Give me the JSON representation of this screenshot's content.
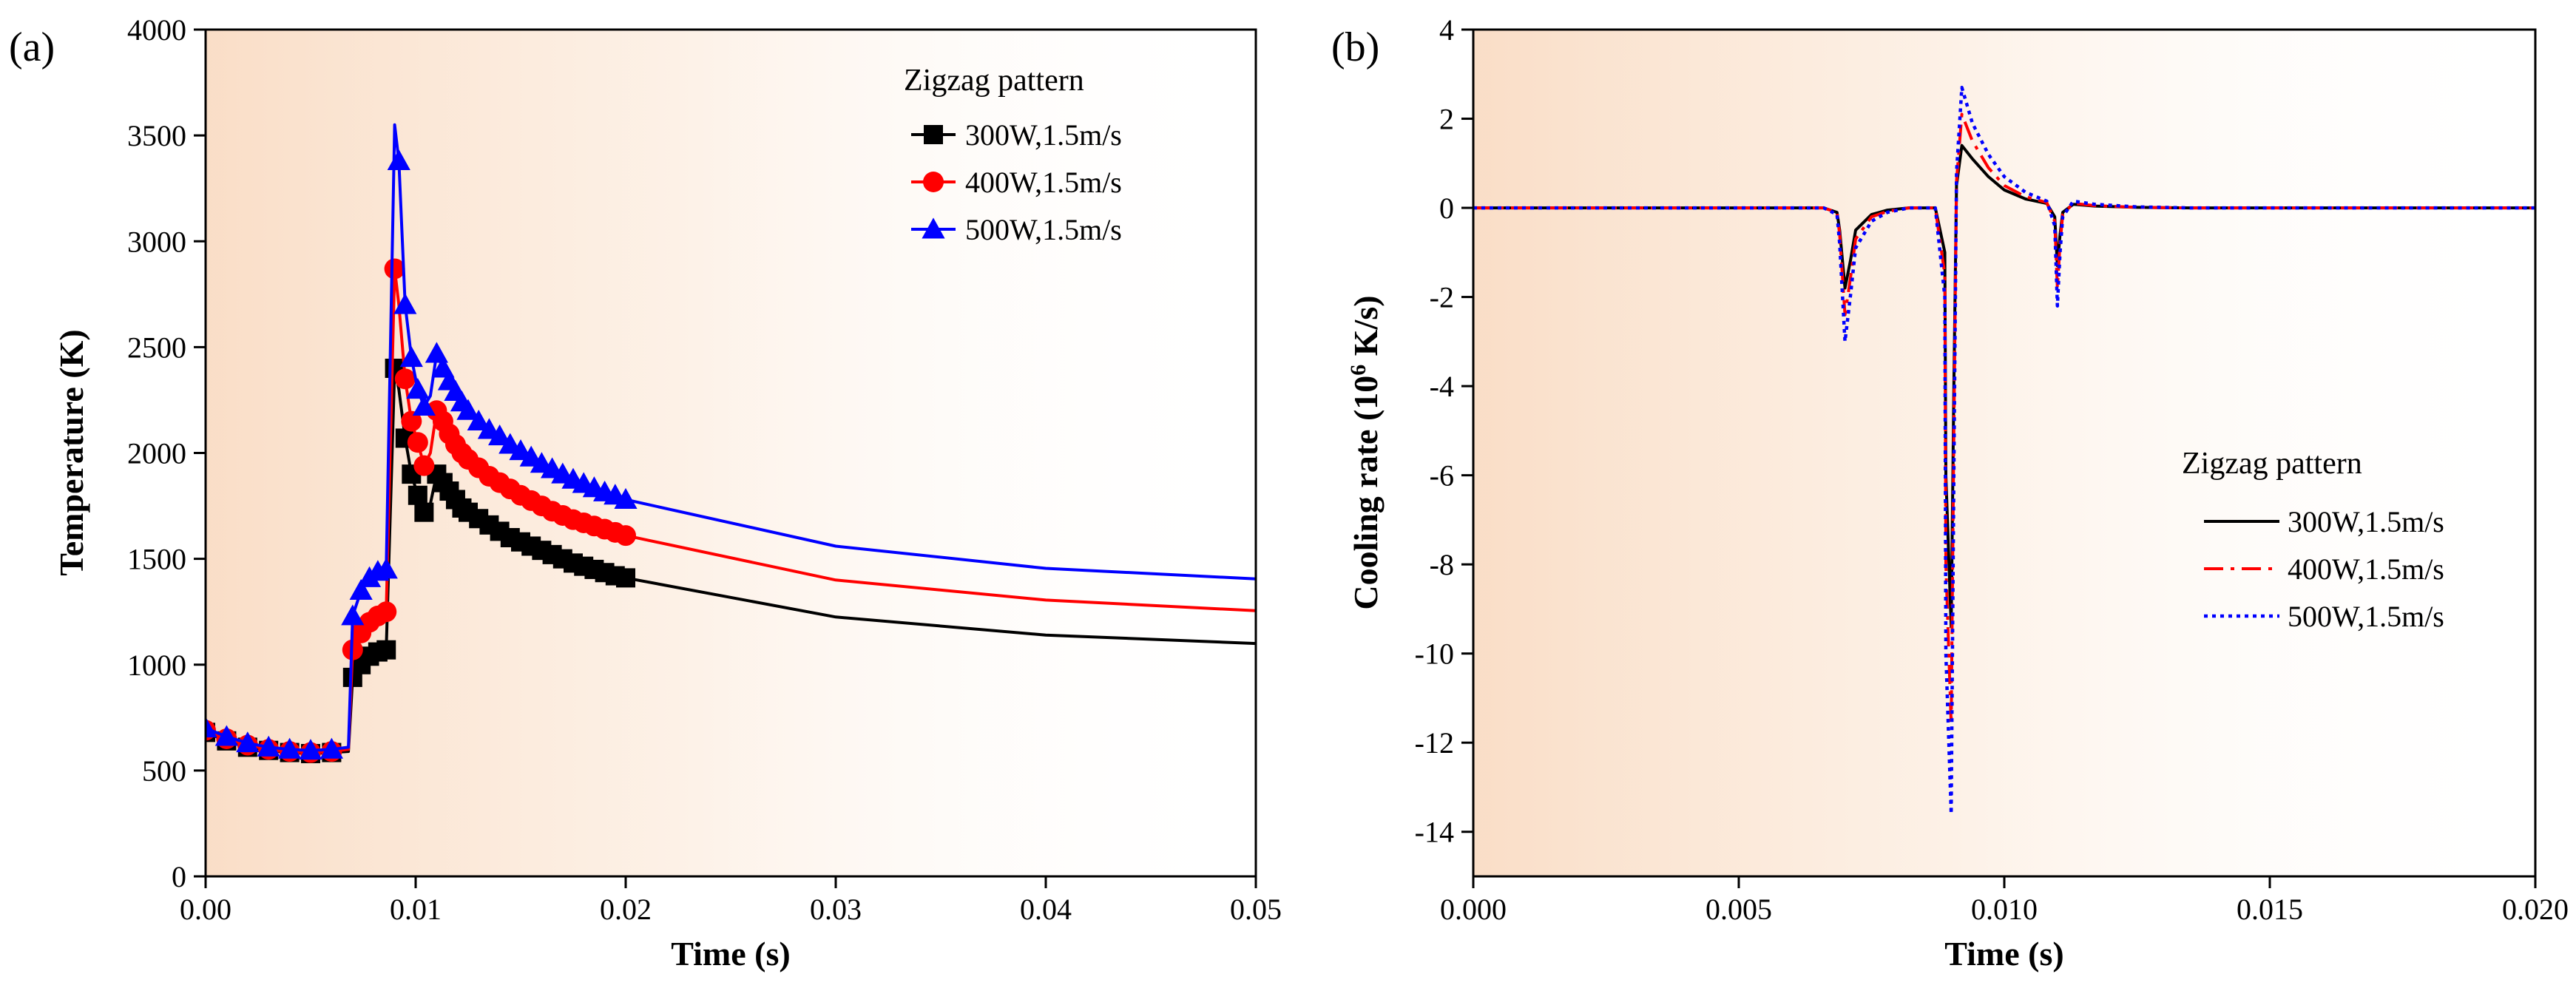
{
  "chart_data": [
    {
      "id": "a",
      "panel_label": "(a)",
      "type": "line",
      "xlabel": "Time (s)",
      "ylabel": "Temperature (K)",
      "xlim": [
        0,
        0.05
      ],
      "ylim": [
        0,
        4000
      ],
      "xticks": [
        0,
        0.01,
        0.02,
        0.03,
        0.04,
        0.05
      ],
      "xtick_labels": [
        "0.00",
        "0.01",
        "0.02",
        "0.03",
        "0.04",
        "0.05"
      ],
      "yticks": [
        0,
        500,
        1000,
        1500,
        2000,
        2500,
        3000,
        3500,
        4000
      ],
      "ytick_labels": [
        "0",
        "500",
        "1000",
        "1500",
        "2000",
        "2500",
        "3000",
        "3500",
        "4000"
      ],
      "legend_title": "Zigzag pattern",
      "legend_position": "top-right",
      "series": [
        {
          "name": "300W,1.5m/s",
          "color": "#000000",
          "marker": "square",
          "dash": "solid",
          "x": [
            0,
            0.001,
            0.002,
            0.003,
            0.004,
            0.005,
            0.006,
            0.0068,
            0.007,
            0.0074,
            0.0078,
            0.0082,
            0.0086,
            0.009,
            0.0092,
            0.0095,
            0.0098,
            0.0101,
            0.0104,
            0.0107,
            0.011,
            0.0113,
            0.0116,
            0.0119,
            0.0122,
            0.0125,
            0.013,
            0.0135,
            0.014,
            0.0145,
            0.015,
            0.0155,
            0.016,
            0.0165,
            0.017,
            0.0175,
            0.018,
            0.0185,
            0.019,
            0.0195,
            0.02,
            0.03,
            0.04,
            0.05
          ],
          "y": [
            680,
            640,
            610,
            595,
            585,
            580,
            585,
            590,
            940,
            1000,
            1040,
            1060,
            1070,
            2400,
            2300,
            2070,
            1900,
            1800,
            1720,
            1760,
            1900,
            1860,
            1820,
            1780,
            1740,
            1720,
            1690,
            1660,
            1630,
            1600,
            1580,
            1560,
            1540,
            1520,
            1500,
            1480,
            1465,
            1450,
            1435,
            1420,
            1410,
            1225,
            1140,
            1100
          ],
          "marker_indices": [
            0,
            1,
            2,
            3,
            4,
            5,
            6,
            8,
            9,
            10,
            11,
            12,
            13,
            15,
            16,
            17,
            18,
            20,
            21,
            22,
            23,
            24,
            25,
            26,
            27,
            28,
            29,
            30,
            31,
            32,
            33,
            34,
            35,
            36,
            37,
            38,
            39,
            40
          ]
        },
        {
          "name": "400W,1.5m/s",
          "color": "#ff0000",
          "marker": "circle",
          "dash": "solid",
          "x": [
            0,
            0.001,
            0.002,
            0.003,
            0.004,
            0.005,
            0.006,
            0.0068,
            0.007,
            0.0074,
            0.0078,
            0.0082,
            0.0086,
            0.009,
            0.0092,
            0.0095,
            0.0098,
            0.0101,
            0.0104,
            0.0107,
            0.011,
            0.0113,
            0.0116,
            0.0119,
            0.0122,
            0.0125,
            0.013,
            0.0135,
            0.014,
            0.0145,
            0.015,
            0.0155,
            0.016,
            0.0165,
            0.017,
            0.0175,
            0.018,
            0.0185,
            0.019,
            0.0195,
            0.02,
            0.03,
            0.04,
            0.05
          ],
          "y": [
            690,
            650,
            620,
            600,
            590,
            585,
            590,
            600,
            1070,
            1150,
            1200,
            1230,
            1250,
            2870,
            2700,
            2350,
            2150,
            2050,
            1940,
            2000,
            2200,
            2150,
            2090,
            2040,
            2000,
            1970,
            1930,
            1890,
            1860,
            1830,
            1800,
            1775,
            1750,
            1725,
            1705,
            1685,
            1670,
            1655,
            1640,
            1625,
            1610,
            1400,
            1305,
            1255
          ],
          "marker_indices": [
            0,
            1,
            2,
            3,
            4,
            5,
            6,
            8,
            9,
            10,
            11,
            12,
            13,
            15,
            16,
            17,
            18,
            20,
            21,
            22,
            23,
            24,
            25,
            26,
            27,
            28,
            29,
            30,
            31,
            32,
            33,
            34,
            35,
            36,
            37,
            38,
            39,
            40
          ]
        },
        {
          "name": "500W,1.5m/s",
          "color": "#0000ff",
          "marker": "triangle",
          "dash": "solid",
          "x": [
            0,
            0.001,
            0.002,
            0.003,
            0.004,
            0.005,
            0.006,
            0.0068,
            0.007,
            0.0074,
            0.0078,
            0.0082,
            0.0086,
            0.009,
            0.0092,
            0.0095,
            0.0098,
            0.0101,
            0.0104,
            0.0107,
            0.011,
            0.0113,
            0.0116,
            0.0119,
            0.0122,
            0.0125,
            0.013,
            0.0135,
            0.014,
            0.0145,
            0.015,
            0.0155,
            0.016,
            0.0165,
            0.017,
            0.0175,
            0.018,
            0.0185,
            0.019,
            0.0195,
            0.02,
            0.03,
            0.04,
            0.05
          ],
          "y": [
            700,
            660,
            630,
            610,
            600,
            595,
            600,
            610,
            1230,
            1350,
            1410,
            1440,
            1450,
            3550,
            3380,
            2700,
            2450,
            2300,
            2220,
            2270,
            2470,
            2400,
            2340,
            2290,
            2240,
            2200,
            2150,
            2110,
            2080,
            2040,
            2010,
            1980,
            1950,
            1925,
            1900,
            1875,
            1855,
            1835,
            1815,
            1800,
            1780,
            1560,
            1455,
            1405
          ],
          "marker_indices": [
            0,
            1,
            2,
            3,
            4,
            5,
            6,
            8,
            9,
            10,
            11,
            12,
            14,
            15,
            16,
            17,
            18,
            20,
            21,
            22,
            23,
            24,
            25,
            26,
            27,
            28,
            29,
            30,
            31,
            32,
            33,
            34,
            35,
            36,
            37,
            38,
            39,
            40
          ]
        }
      ]
    },
    {
      "id": "b",
      "panel_label": "(b)",
      "type": "line",
      "xlabel": "Time (s)",
      "ylabel_parts": [
        "Cooling rate (10",
        "6",
        " K/s)"
      ],
      "xlim": [
        0,
        0.02
      ],
      "ylim": [
        -15,
        4
      ],
      "xticks": [
        0,
        0.005,
        0.01,
        0.015,
        0.02
      ],
      "xtick_labels": [
        "0.000",
        "0.005",
        "0.010",
        "0.015",
        "0.020"
      ],
      "yticks": [
        -14,
        -12,
        -10,
        -8,
        -6,
        -4,
        -2,
        0,
        2,
        4
      ],
      "ytick_labels": [
        "-14",
        "-12",
        "-10",
        "-8",
        "-6",
        "-4",
        "-2",
        "0",
        "2",
        "4"
      ],
      "legend_title": "Zigzag pattern",
      "legend_position": "lower-right",
      "series": [
        {
          "name": "300W,1.5m/s",
          "color": "#000000",
          "dash": "solid",
          "x": [
            0,
            0.0066,
            0.00685,
            0.0069,
            0.007,
            0.0071,
            0.0072,
            0.0075,
            0.0078,
            0.0082,
            0.0087,
            0.00888,
            0.0089,
            0.009,
            0.00905,
            0.0091,
            0.0092,
            0.0094,
            0.0097,
            0.01,
            0.0104,
            0.0108,
            0.01095,
            0.011,
            0.01105,
            0.0111,
            0.0113,
            0.0117,
            0.0125,
            0.0135,
            0.02
          ],
          "y": [
            0,
            0,
            -0.1,
            -0.5,
            -1.8,
            -1.2,
            -0.5,
            -0.15,
            -0.05,
            0,
            0,
            -1,
            -6,
            -9.4,
            -4,
            0.5,
            1.4,
            1.1,
            0.7,
            0.4,
            0.2,
            0.1,
            -0.2,
            -1.3,
            -0.6,
            -0.1,
            0.08,
            0.04,
            0.01,
            0,
            0
          ]
        },
        {
          "name": "400W,1.5m/s",
          "color": "#ff0000",
          "dash": "dashdot",
          "x": [
            0,
            0.0066,
            0.00685,
            0.0069,
            0.007,
            0.0071,
            0.0072,
            0.0075,
            0.0078,
            0.0082,
            0.0087,
            0.00888,
            0.0089,
            0.009,
            0.00905,
            0.0091,
            0.0092,
            0.0094,
            0.0097,
            0.01,
            0.0104,
            0.0108,
            0.01095,
            0.011,
            0.01105,
            0.0111,
            0.0113,
            0.0117,
            0.0125,
            0.0135,
            0.02
          ],
          "y": [
            0,
            0,
            -0.1,
            -0.6,
            -2.4,
            -1.6,
            -0.7,
            -0.2,
            -0.08,
            0,
            0,
            -1.5,
            -8,
            -11.6,
            -5,
            0.6,
            2.1,
            1.5,
            0.9,
            0.5,
            0.25,
            0.12,
            -0.3,
            -1.8,
            -0.8,
            -0.15,
            0.1,
            0.05,
            0.01,
            0,
            0
          ]
        },
        {
          "name": "500W,1.5m/s",
          "color": "#0000ff",
          "dash": "dotted",
          "x": [
            0,
            0.0066,
            0.00685,
            0.0069,
            0.007,
            0.0071,
            0.0072,
            0.0075,
            0.0078,
            0.0082,
            0.0087,
            0.00888,
            0.0089,
            0.009,
            0.00905,
            0.0091,
            0.0092,
            0.0094,
            0.0097,
            0.01,
            0.0104,
            0.0108,
            0.01095,
            0.011,
            0.01105,
            0.0111,
            0.0113,
            0.0117,
            0.0125,
            0.0135,
            0.02
          ],
          "y": [
            0,
            0,
            -0.15,
            -0.8,
            -3.0,
            -2.0,
            -0.9,
            -0.3,
            -0.1,
            0,
            0,
            -2,
            -10,
            -13.6,
            -6,
            0.8,
            2.7,
            1.9,
            1.2,
            0.7,
            0.35,
            0.15,
            -0.4,
            -2.2,
            -1.0,
            -0.2,
            0.15,
            0.08,
            0.02,
            0,
            0
          ]
        }
      ]
    }
  ]
}
